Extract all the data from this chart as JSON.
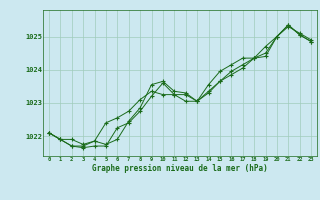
{
  "title": "Graphe pression niveau de la mer (hPa)",
  "bg_color": "#cce8f0",
  "line_color": "#1a6b1a",
  "grid_color": "#a0ccbb",
  "xlim": [
    -0.5,
    23.5
  ],
  "ylim": [
    1021.4,
    1025.8
  ],
  "xticks": [
    0,
    1,
    2,
    3,
    4,
    5,
    6,
    7,
    8,
    9,
    10,
    11,
    12,
    13,
    14,
    15,
    16,
    17,
    18,
    19,
    20,
    21,
    22,
    23
  ],
  "yticks": [
    1022,
    1023,
    1024,
    1025
  ],
  "series1": [
    [
      0,
      1022.1
    ],
    [
      1,
      1021.9
    ],
    [
      2,
      1021.9
    ],
    [
      3,
      1021.75
    ],
    [
      4,
      1021.85
    ],
    [
      5,
      1021.75
    ],
    [
      6,
      1021.9
    ],
    [
      7,
      1022.45
    ],
    [
      8,
      1022.85
    ],
    [
      9,
      1023.55
    ],
    [
      10,
      1023.65
    ],
    [
      11,
      1023.35
    ],
    [
      12,
      1023.3
    ],
    [
      13,
      1023.05
    ],
    [
      14,
      1023.3
    ],
    [
      15,
      1023.65
    ],
    [
      16,
      1023.85
    ],
    [
      17,
      1024.05
    ],
    [
      18,
      1024.35
    ],
    [
      19,
      1024.4
    ],
    [
      20,
      1025.0
    ],
    [
      21,
      1025.3
    ],
    [
      22,
      1025.1
    ],
    [
      23,
      1024.9
    ]
  ],
  "series2": [
    [
      0,
      1022.1
    ],
    [
      1,
      1021.9
    ],
    [
      2,
      1021.7
    ],
    [
      3,
      1021.7
    ],
    [
      4,
      1021.85
    ],
    [
      5,
      1022.4
    ],
    [
      6,
      1022.55
    ],
    [
      7,
      1022.75
    ],
    [
      8,
      1023.1
    ],
    [
      9,
      1023.35
    ],
    [
      10,
      1023.25
    ],
    [
      11,
      1023.25
    ],
    [
      12,
      1023.05
    ],
    [
      13,
      1023.05
    ],
    [
      14,
      1023.55
    ],
    [
      15,
      1023.95
    ],
    [
      16,
      1024.15
    ],
    [
      17,
      1024.35
    ],
    [
      18,
      1024.35
    ],
    [
      19,
      1024.7
    ],
    [
      20,
      1025.0
    ],
    [
      21,
      1025.35
    ],
    [
      22,
      1025.05
    ],
    [
      23,
      1024.85
    ]
  ],
  "series3": [
    [
      0,
      1022.1
    ],
    [
      1,
      1021.9
    ],
    [
      2,
      1021.7
    ],
    [
      3,
      1021.65
    ],
    [
      4,
      1021.7
    ],
    [
      5,
      1021.7
    ],
    [
      6,
      1022.25
    ],
    [
      7,
      1022.4
    ],
    [
      8,
      1022.75
    ],
    [
      9,
      1023.2
    ],
    [
      10,
      1023.6
    ],
    [
      11,
      1023.25
    ],
    [
      12,
      1023.25
    ],
    [
      13,
      1023.05
    ],
    [
      14,
      1023.35
    ],
    [
      15,
      1023.65
    ],
    [
      16,
      1023.95
    ],
    [
      17,
      1024.15
    ],
    [
      18,
      1024.35
    ],
    [
      19,
      1024.5
    ],
    [
      20,
      1025.0
    ],
    [
      21,
      1025.35
    ],
    [
      22,
      1025.05
    ],
    [
      23,
      1024.85
    ]
  ]
}
